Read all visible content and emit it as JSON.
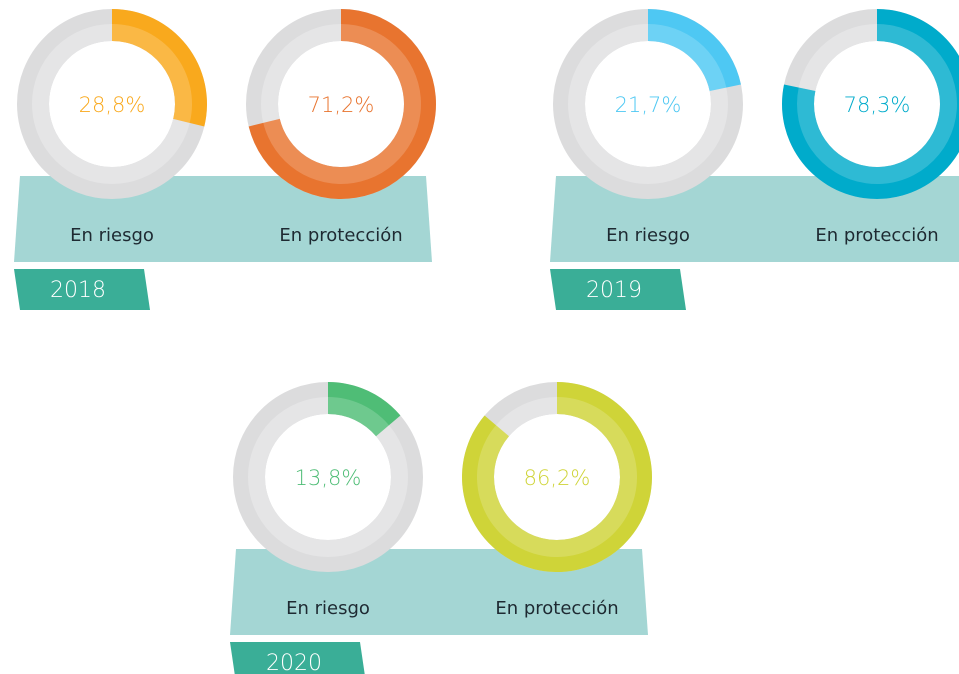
{
  "chart_data": [
    {
      "type": "donut",
      "title": "2018",
      "categories": [
        "En riesgo",
        "En protección"
      ],
      "values": [
        28.8,
        71.2
      ],
      "value_labels": [
        "28,8%",
        "71,2%"
      ],
      "colors": [
        "#f9a91d",
        "#e8742f"
      ],
      "ylim": [
        0,
        100
      ]
    },
    {
      "type": "donut",
      "title": "2019",
      "categories": [
        "En riesgo",
        "En protección"
      ],
      "values": [
        21.7,
        78.3
      ],
      "value_labels": [
        "21,7%",
        "78,3%"
      ],
      "colors": [
        "#4ec8f3",
        "#00abcb"
      ],
      "ylim": [
        0,
        100
      ]
    },
    {
      "type": "donut",
      "title": "2020",
      "categories": [
        "En riesgo",
        "En protección"
      ],
      "values": [
        13.8,
        86.2
      ],
      "value_labels": [
        "13,8%",
        "86,2%"
      ],
      "colors": [
        "#4fbd76",
        "#cfd438"
      ],
      "ylim": [
        0,
        100
      ]
    }
  ]
}
